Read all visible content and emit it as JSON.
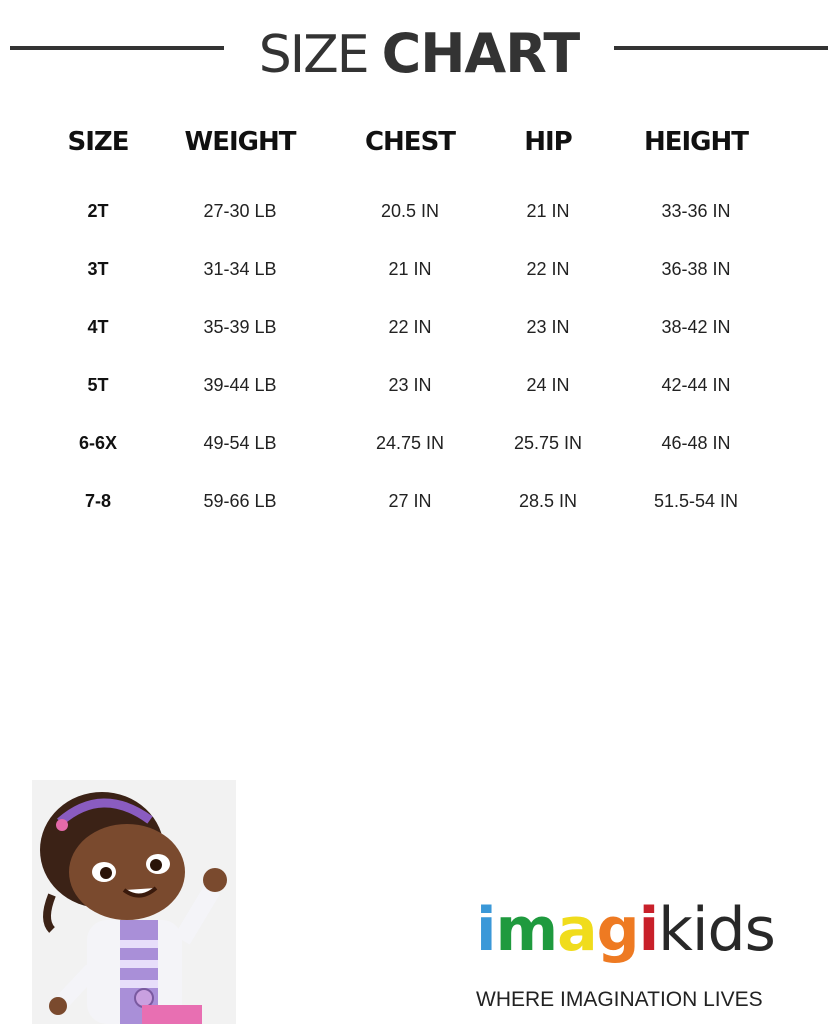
{
  "title": {
    "light": "SIZE",
    "bold": "CHART"
  },
  "columns": [
    "SIZE",
    "WEIGHT",
    "CHEST",
    "HIP",
    "HEIGHT"
  ],
  "rows": [
    [
      "2T",
      "27-30 LB",
      "20.5 IN",
      "21 IN",
      "33-36 IN"
    ],
    [
      "3T",
      "31-34 LB",
      "21 IN",
      "22 IN",
      "36-38 IN"
    ],
    [
      "4T",
      "35-39 LB",
      "22 IN",
      "23 IN",
      "38-42 IN"
    ],
    [
      "5T",
      "39-44 LB",
      "23 IN",
      "24 IN",
      "42-44 IN"
    ],
    [
      "6-6X",
      "49-54 LB",
      "24.75 IN",
      "25.75 IN",
      "46-48 IN"
    ],
    [
      "7-8",
      "59-66 LB",
      "27 IN",
      "28.5 IN",
      "51.5-54 IN"
    ]
  ],
  "logo": {
    "letters": [
      "i",
      "m",
      "a",
      "g",
      "i"
    ],
    "colors": [
      "#3a98d8",
      "#1f9a3e",
      "#f0dc1c",
      "#ee7a22",
      "#c8202a"
    ],
    "suffix": "kids",
    "tagline": "WHERE IMAGINATION LIVES"
  },
  "character_image": "cartoon-girl-doctor-illustration"
}
